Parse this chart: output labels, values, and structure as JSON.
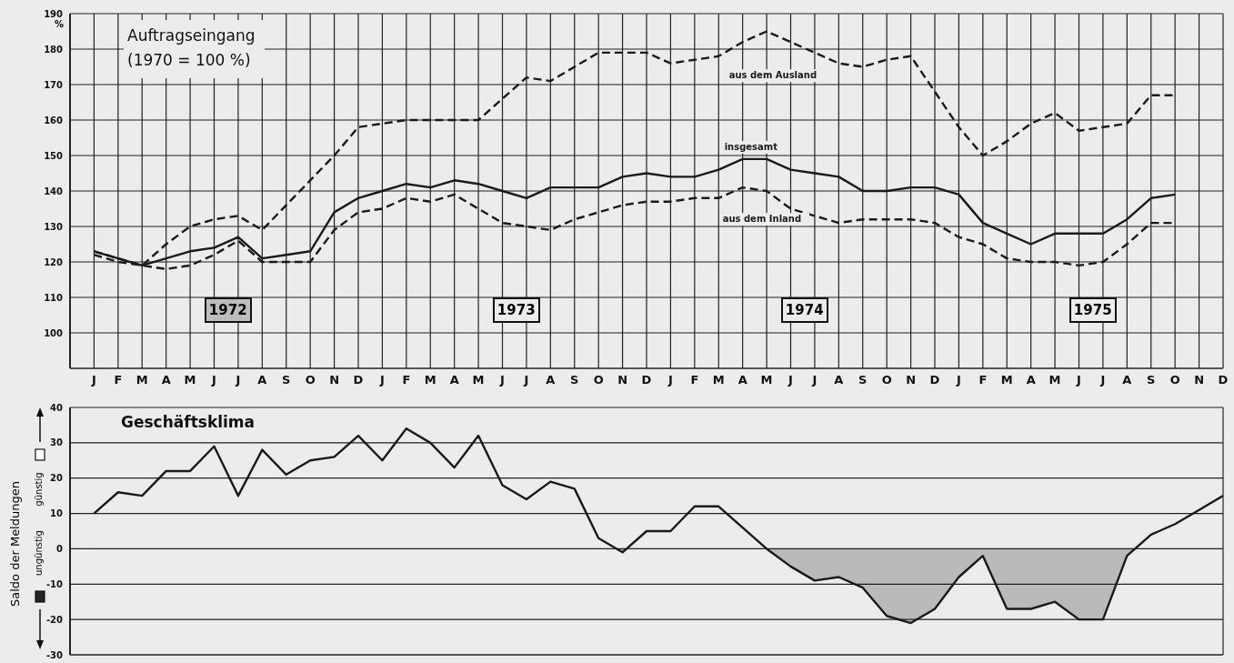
{
  "chart_data": [
    {
      "type": "line",
      "title": "Auftragseingang",
      "subtitle": "(1970 = 100 %)",
      "ylabel": "%",
      "annotations": [
        "1972",
        "1973",
        "1974",
        "1975"
      ],
      "categories": [
        "J",
        "F",
        "M",
        "A",
        "M",
        "J",
        "J",
        "A",
        "S",
        "O",
        "N",
        "D",
        "J",
        "F",
        "M",
        "A",
        "M",
        "J",
        "J",
        "A",
        "S",
        "O",
        "N",
        "D",
        "J",
        "F",
        "M",
        "A",
        "M",
        "J",
        "J",
        "A",
        "S",
        "O",
        "N",
        "D",
        "J",
        "F",
        "M",
        "A",
        "M",
        "J",
        "J",
        "A",
        "S",
        "O",
        "N",
        "D"
      ],
      "ylim": [
        90,
        190
      ],
      "yticks": [
        100,
        110,
        120,
        130,
        140,
        150,
        160,
        170,
        180,
        190
      ],
      "grid": true,
      "series": [
        {
          "name": "aus dem Ausland",
          "color": "#1a1a1a",
          "line_style": "dashed",
          "values": [
            123,
            121,
            119,
            125,
            130,
            132,
            133,
            129,
            136,
            143,
            150,
            158,
            159,
            160,
            160,
            160,
            160,
            166,
            172,
            171,
            175,
            179,
            179,
            179,
            176,
            177,
            178,
            182,
            185,
            182,
            179,
            176,
            175,
            177,
            178,
            168,
            158,
            150,
            154,
            159,
            162,
            157,
            158,
            159,
            167,
            167,
            null,
            null
          ]
        },
        {
          "name": "insgesamt",
          "color": "#1a1a1a",
          "line_style": "solid",
          "values": [
            123,
            121,
            119,
            121,
            123,
            124,
            127,
            121,
            122,
            123,
            134,
            138,
            140,
            142,
            141,
            143,
            142,
            140,
            138,
            141,
            141,
            141,
            144,
            145,
            144,
            144,
            146,
            149,
            149,
            146,
            145,
            144,
            140,
            140,
            141,
            141,
            139,
            131,
            128,
            125,
            128,
            128,
            128,
            132,
            138,
            139,
            null,
            null
          ]
        },
        {
          "name": "aus dem Inland",
          "color": "#1a1a1a",
          "line_style": "dashed",
          "values": [
            122,
            120,
            119,
            118,
            119,
            122,
            126,
            120,
            120,
            120,
            129,
            134,
            135,
            138,
            137,
            139,
            135,
            131,
            130,
            129,
            132,
            134,
            136,
            137,
            137,
            138,
            138,
            141,
            140,
            135,
            133,
            131,
            132,
            132,
            132,
            131,
            127,
            125,
            121,
            120,
            120,
            119,
            120,
            125,
            131,
            131,
            null,
            null
          ]
        }
      ]
    },
    {
      "type": "area",
      "title": "Geschäftsklima",
      "ylabel": "Saldo der Meldungen",
      "annotations": [
        "günstig",
        "ungünstig"
      ],
      "tick_labels": "y",
      "ylim": [
        -30,
        40
      ],
      "yticks": [
        -30,
        -20,
        -10,
        0,
        10,
        20,
        30,
        40
      ],
      "grid": true,
      "series": [
        {
          "color": "#1a1a1a",
          "values": [
            10,
            16,
            15,
            22,
            22,
            29,
            15,
            28,
            21,
            25,
            26,
            32,
            25,
            34,
            30,
            23,
            32,
            18,
            14,
            19,
            17,
            3,
            -1,
            5,
            5,
            12,
            12,
            6,
            0,
            -5,
            -9,
            -8,
            -11,
            -19,
            -21,
            -17,
            -8,
            -2,
            -17,
            -17,
            -15,
            -20,
            -20,
            -2,
            4,
            7,
            11,
            15
          ]
        }
      ]
    }
  ]
}
